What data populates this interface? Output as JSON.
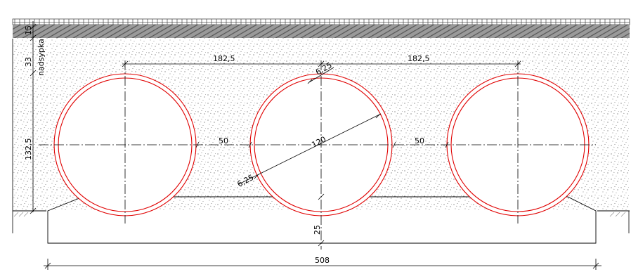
{
  "drawing": {
    "pipe_color": "#e00000",
    "line_color": "#000000",
    "labels": {
      "layer_top": "15",
      "fill_depth": "33",
      "fill_label": "nadsypka",
      "span_left": "182,5",
      "span_right": "182,5",
      "wall_top": "6,25",
      "gap_left": "50",
      "gap_right": "50",
      "diameter": "120",
      "wall_bottom": "6,25",
      "height": "132,5",
      "base_thickness": "25",
      "total_width": "508"
    }
  }
}
